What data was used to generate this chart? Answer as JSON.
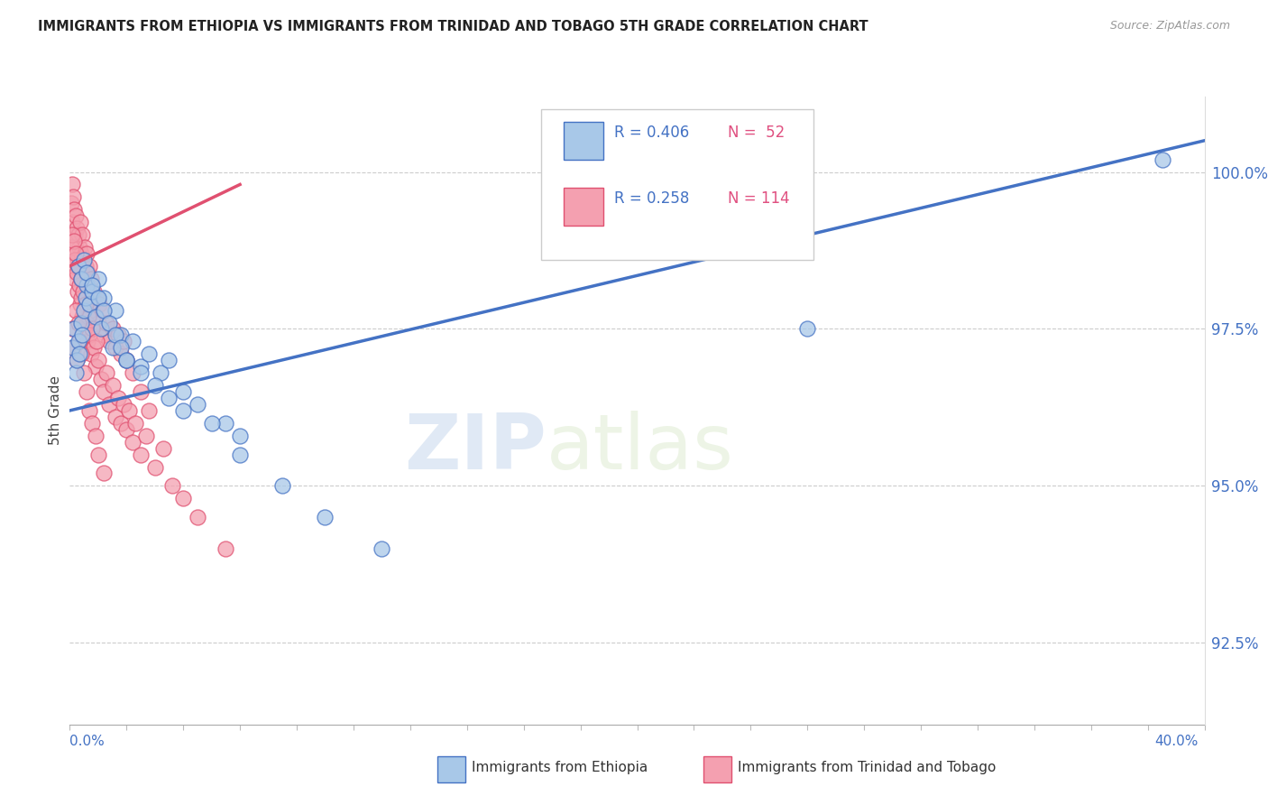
{
  "title": "IMMIGRANTS FROM ETHIOPIA VS IMMIGRANTS FROM TRINIDAD AND TOBAGO 5TH GRADE CORRELATION CHART",
  "source": "Source: ZipAtlas.com",
  "ylabel": "5th Grade",
  "right_yticks": [
    92.5,
    95.0,
    97.5,
    100.0
  ],
  "right_yticklabels": [
    "92.5%",
    "95.0%",
    "97.5%",
    "100.0%"
  ],
  "xmin": 0.0,
  "xmax": 40.0,
  "ymin": 91.2,
  "ymax": 101.2,
  "legend_r1": "R = 0.406",
  "legend_n1": "N =  52",
  "legend_r2": "R = 0.258",
  "legend_n2": "N = 114",
  "color_ethiopia": "#a8c8e8",
  "color_tt": "#f4a0b0",
  "color_line_ethiopia": "#4472c4",
  "color_line_tt": "#e05070",
  "watermark_zip": "ZIP",
  "watermark_atlas": "atlas",
  "ethiopia_x": [
    0.1,
    0.15,
    0.2,
    0.25,
    0.3,
    0.35,
    0.4,
    0.45,
    0.5,
    0.55,
    0.6,
    0.7,
    0.8,
    0.9,
    1.0,
    1.1,
    1.2,
    1.5,
    1.6,
    1.8,
    2.0,
    2.2,
    2.5,
    2.8,
    3.2,
    3.5,
    4.0,
    4.5,
    5.5,
    6.0,
    0.3,
    0.4,
    0.5,
    0.6,
    0.8,
    1.0,
    1.2,
    1.4,
    1.6,
    1.8,
    2.0,
    2.5,
    3.0,
    3.5,
    4.0,
    5.0,
    6.0,
    7.5,
    9.0,
    11.0,
    26.0,
    38.5
  ],
  "ethiopia_y": [
    97.2,
    97.5,
    96.8,
    97.0,
    97.3,
    97.1,
    97.6,
    97.4,
    97.8,
    98.0,
    98.2,
    97.9,
    98.1,
    97.7,
    98.3,
    97.5,
    98.0,
    97.2,
    97.8,
    97.4,
    97.0,
    97.3,
    96.9,
    97.1,
    96.8,
    97.0,
    96.5,
    96.3,
    96.0,
    95.8,
    98.5,
    98.3,
    98.6,
    98.4,
    98.2,
    98.0,
    97.8,
    97.6,
    97.4,
    97.2,
    97.0,
    96.8,
    96.6,
    96.4,
    96.2,
    96.0,
    95.5,
    95.0,
    94.5,
    94.0,
    97.5,
    100.2
  ],
  "tt_x": [
    0.05,
    0.08,
    0.1,
    0.12,
    0.15,
    0.18,
    0.2,
    0.22,
    0.25,
    0.28,
    0.3,
    0.32,
    0.35,
    0.38,
    0.4,
    0.42,
    0.45,
    0.48,
    0.5,
    0.52,
    0.55,
    0.58,
    0.6,
    0.62,
    0.65,
    0.68,
    0.7,
    0.72,
    0.75,
    0.78,
    0.8,
    0.85,
    0.9,
    0.95,
    1.0,
    1.05,
    1.1,
    1.15,
    1.2,
    1.3,
    1.4,
    1.5,
    1.6,
    1.7,
    1.8,
    1.9,
    2.0,
    2.2,
    2.5,
    2.8,
    0.06,
    0.09,
    0.11,
    0.14,
    0.17,
    0.19,
    0.21,
    0.24,
    0.27,
    0.3,
    0.33,
    0.36,
    0.39,
    0.41,
    0.44,
    0.47,
    0.5,
    0.53,
    0.56,
    0.59,
    0.62,
    0.65,
    0.7,
    0.75,
    0.8,
    0.85,
    0.9,
    0.95,
    1.0,
    1.1,
    1.2,
    1.3,
    1.4,
    1.5,
    1.6,
    1.7,
    1.8,
    1.9,
    2.0,
    2.1,
    2.2,
    2.3,
    2.5,
    2.7,
    3.0,
    3.3,
    3.6,
    4.0,
    4.5,
    5.5,
    0.1,
    0.15,
    0.2,
    0.25,
    0.3,
    0.35,
    0.4,
    0.5,
    0.6,
    0.7,
    0.8,
    0.9,
    1.0,
    1.2
  ],
  "tt_y": [
    99.5,
    99.8,
    99.2,
    99.6,
    99.4,
    99.0,
    99.3,
    98.8,
    99.1,
    98.6,
    99.0,
    98.5,
    98.8,
    99.2,
    98.7,
    98.4,
    99.0,
    98.6,
    98.3,
    98.8,
    98.5,
    98.2,
    98.7,
    98.4,
    98.1,
    98.5,
    98.2,
    97.9,
    98.3,
    98.0,
    97.8,
    98.1,
    97.7,
    98.0,
    97.6,
    97.9,
    97.5,
    97.8,
    97.4,
    97.6,
    97.3,
    97.5,
    97.2,
    97.4,
    97.1,
    97.3,
    97.0,
    96.8,
    96.5,
    96.2,
    98.8,
    99.0,
    98.5,
    98.9,
    98.6,
    98.3,
    98.7,
    98.4,
    98.1,
    98.5,
    98.2,
    97.9,
    98.3,
    98.0,
    97.7,
    98.1,
    97.8,
    97.5,
    97.9,
    97.6,
    97.3,
    97.7,
    97.4,
    97.1,
    97.5,
    97.2,
    96.9,
    97.3,
    97.0,
    96.7,
    96.5,
    96.8,
    96.3,
    96.6,
    96.1,
    96.4,
    96.0,
    96.3,
    95.9,
    96.2,
    95.7,
    96.0,
    95.5,
    95.8,
    95.3,
    95.6,
    95.0,
    94.8,
    94.5,
    94.0,
    97.5,
    97.2,
    97.8,
    97.0,
    97.6,
    97.3,
    97.1,
    96.8,
    96.5,
    96.2,
    96.0,
    95.8,
    95.5,
    95.2
  ],
  "eth_line_x0": 0.0,
  "eth_line_y0": 96.2,
  "eth_line_x1": 40.0,
  "eth_line_y1": 100.5,
  "tt_line_x0": 0.0,
  "tt_line_y0": 98.5,
  "tt_line_x1": 6.0,
  "tt_line_y1": 99.8
}
